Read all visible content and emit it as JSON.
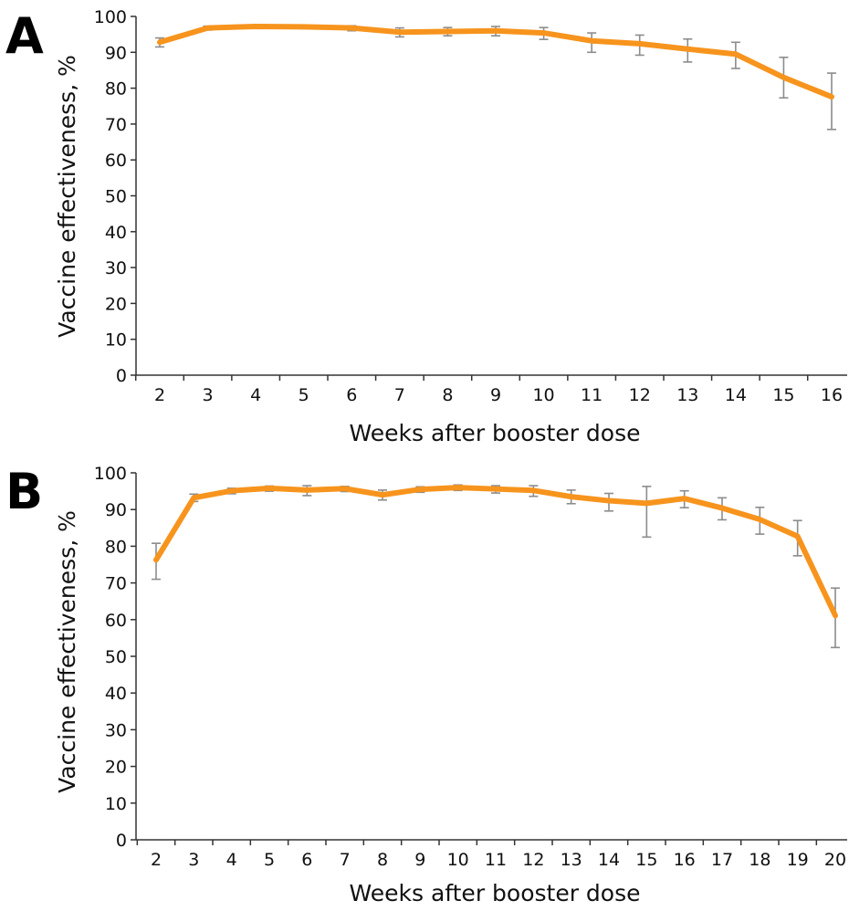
{
  "chart_data": [
    {
      "panel": "A",
      "type": "line",
      "xlabel": "Weeks after booster dose",
      "ylabel": "Vaccine effectiveness, %",
      "ylim": [
        0,
        100
      ],
      "yticks": [
        0,
        10,
        20,
        30,
        40,
        50,
        60,
        70,
        80,
        90,
        100
      ],
      "x": [
        2,
        3,
        4,
        5,
        6,
        7,
        8,
        9,
        10,
        11,
        12,
        13,
        14,
        15,
        16
      ],
      "series": [
        {
          "values": [
            92.8,
            96.8,
            97.2,
            97.1,
            96.8,
            95.6,
            95.8,
            96.0,
            95.4,
            93.2,
            92.4,
            90.9,
            89.5,
            83.0,
            77.6
          ],
          "lower": [
            91.5,
            96.2,
            96.7,
            96.6,
            96.0,
            94.3,
            94.6,
            94.6,
            93.6,
            90.0,
            89.2,
            87.3,
            85.5,
            77.3,
            68.5
          ],
          "upper": [
            94.0,
            97.3,
            97.6,
            97.5,
            97.4,
            96.8,
            96.9,
            97.2,
            96.9,
            95.4,
            94.8,
            93.7,
            92.8,
            88.6,
            84.2
          ],
          "color": "#f7941d"
        }
      ],
      "errorbar_color": "#8c8c8c",
      "grid": false
    },
    {
      "panel": "B",
      "type": "line",
      "xlabel": "Weeks after booster dose",
      "ylabel": "Vaccine effectiveness, %",
      "ylim": [
        0,
        100
      ],
      "yticks": [
        0,
        10,
        20,
        30,
        40,
        50,
        60,
        70,
        80,
        90,
        100
      ],
      "x": [
        2,
        3,
        4,
        5,
        6,
        7,
        8,
        9,
        10,
        11,
        12,
        13,
        14,
        15,
        16,
        17,
        18,
        19,
        20
      ],
      "series": [
        {
          "values": [
            76.3,
            93.2,
            95.1,
            95.8,
            95.3,
            95.7,
            94.0,
            95.5,
            96.0,
            95.6,
            95.2,
            93.5,
            92.4,
            91.7,
            93.0,
            90.4,
            87.3,
            82.7,
            61.1
          ],
          "lower": [
            71.0,
            92.2,
            94.3,
            95.0,
            93.8,
            94.9,
            92.6,
            94.7,
            95.2,
            94.5,
            93.6,
            91.6,
            89.6,
            82.5,
            90.5,
            87.2,
            83.3,
            77.4,
            52.4
          ],
          "upper": [
            80.8,
            94.2,
            95.8,
            96.4,
            96.5,
            96.3,
            95.3,
            96.2,
            96.7,
            96.5,
            96.5,
            95.3,
            94.4,
            96.3,
            95.1,
            93.2,
            90.6,
            87.0,
            68.6
          ],
          "color": "#f7941d"
        }
      ],
      "errorbar_color": "#8c8c8c",
      "grid": false
    }
  ]
}
